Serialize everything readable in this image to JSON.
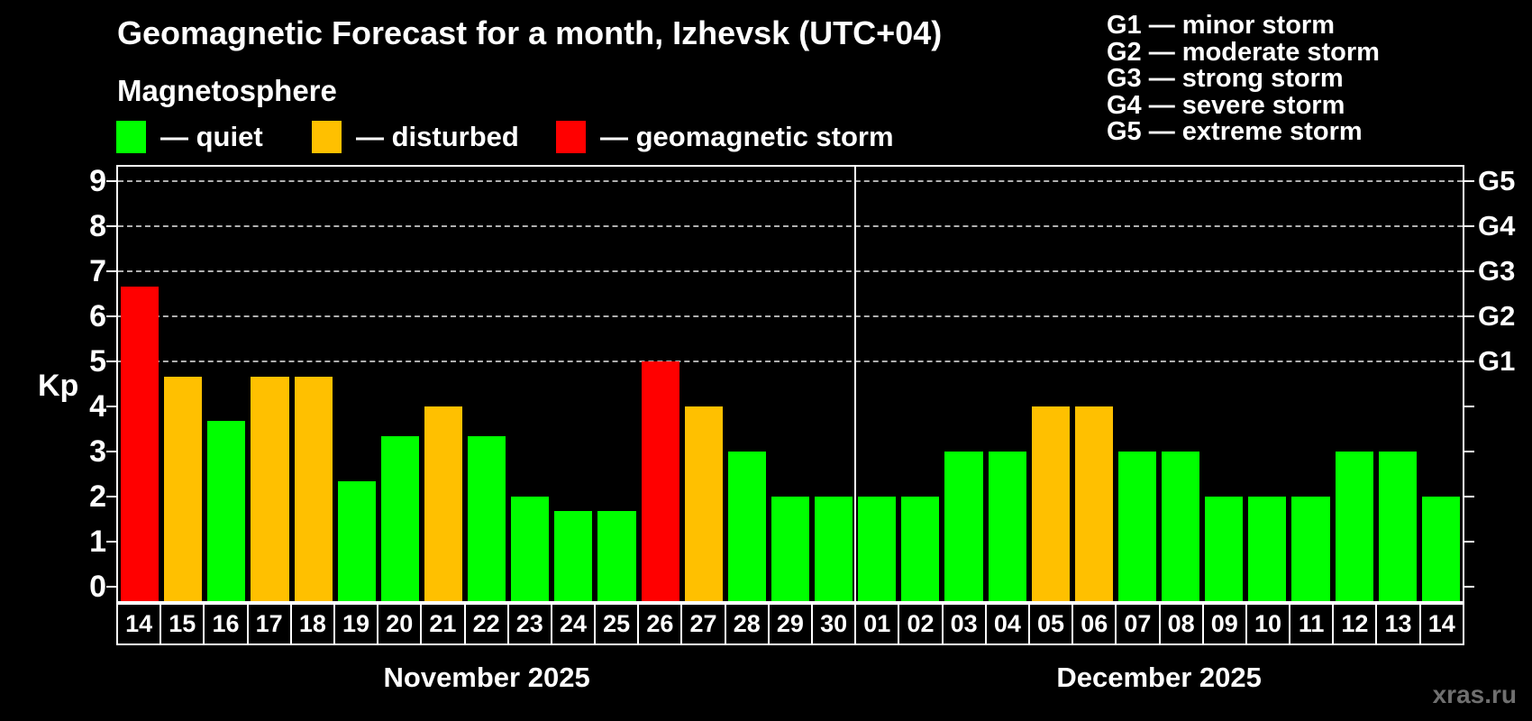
{
  "watermark": "xras.ru",
  "chart_data": {
    "type": "bar",
    "title": "Geomagnetic Forecast for a month, Izhevsk (UTC+04)",
    "subtitle": "Magnetosphere",
    "ylabel": "Kp",
    "ylim": [
      0,
      9
    ],
    "yticks": [
      0,
      1,
      2,
      3,
      4,
      5,
      6,
      7,
      8,
      9
    ],
    "grid_levels": [
      5,
      6,
      7,
      8,
      9
    ],
    "grid_on": true,
    "legend_position": "top-left",
    "status_colors": {
      "quiet": "#00ff00",
      "disturbed": "#ffc000",
      "storm": "#ff0000"
    },
    "legend": [
      {
        "status": "quiet",
        "label": "— quiet"
      },
      {
        "status": "disturbed",
        "label": "— disturbed"
      },
      {
        "status": "storm",
        "label": "— geomagnetic storm"
      }
    ],
    "g_legend": [
      "G1 — minor storm",
      "G2 — moderate storm",
      "G3 — strong storm",
      "G4 — severe storm",
      "G5 — extreme storm"
    ],
    "right_axis": [
      {
        "label": "G1",
        "kp": 5
      },
      {
        "label": "G2",
        "kp": 6
      },
      {
        "label": "G3",
        "kp": 7
      },
      {
        "label": "G4",
        "kp": 8
      },
      {
        "label": "G5",
        "kp": 9
      }
    ],
    "months": [
      {
        "label": "November 2025",
        "points": [
          {
            "day": "14",
            "kp": 6.67,
            "status": "storm"
          },
          {
            "day": "15",
            "kp": 4.67,
            "status": "disturbed"
          },
          {
            "day": "16",
            "kp": 3.67,
            "status": "quiet"
          },
          {
            "day": "17",
            "kp": 4.67,
            "status": "disturbed"
          },
          {
            "day": "18",
            "kp": 4.67,
            "status": "disturbed"
          },
          {
            "day": "19",
            "kp": 2.33,
            "status": "quiet"
          },
          {
            "day": "20",
            "kp": 3.33,
            "status": "quiet"
          },
          {
            "day": "21",
            "kp": 4.0,
            "status": "disturbed"
          },
          {
            "day": "22",
            "kp": 3.33,
            "status": "quiet"
          },
          {
            "day": "23",
            "kp": 2.0,
            "status": "quiet"
          },
          {
            "day": "24",
            "kp": 1.67,
            "status": "quiet"
          },
          {
            "day": "25",
            "kp": 1.67,
            "status": "quiet"
          },
          {
            "day": "26",
            "kp": 5.0,
            "status": "storm"
          },
          {
            "day": "27",
            "kp": 4.0,
            "status": "disturbed"
          },
          {
            "day": "28",
            "kp": 3.0,
            "status": "quiet"
          },
          {
            "day": "29",
            "kp": 2.0,
            "status": "quiet"
          },
          {
            "day": "30",
            "kp": 2.0,
            "status": "quiet"
          }
        ]
      },
      {
        "label": "December 2025",
        "points": [
          {
            "day": "01",
            "kp": 2.0,
            "status": "quiet"
          },
          {
            "day": "02",
            "kp": 2.0,
            "status": "quiet"
          },
          {
            "day": "03",
            "kp": 3.0,
            "status": "quiet"
          },
          {
            "day": "04",
            "kp": 3.0,
            "status": "quiet"
          },
          {
            "day": "05",
            "kp": 4.0,
            "status": "disturbed"
          },
          {
            "day": "06",
            "kp": 4.0,
            "status": "disturbed"
          },
          {
            "day": "07",
            "kp": 3.0,
            "status": "quiet"
          },
          {
            "day": "08",
            "kp": 3.0,
            "status": "quiet"
          },
          {
            "day": "09",
            "kp": 2.0,
            "status": "quiet"
          },
          {
            "day": "10",
            "kp": 2.0,
            "status": "quiet"
          },
          {
            "day": "11",
            "kp": 2.0,
            "status": "quiet"
          },
          {
            "day": "12",
            "kp": 3.0,
            "status": "quiet"
          },
          {
            "day": "13",
            "kp": 3.0,
            "status": "quiet"
          },
          {
            "day": "14",
            "kp": 2.0,
            "status": "quiet"
          }
        ]
      }
    ]
  }
}
